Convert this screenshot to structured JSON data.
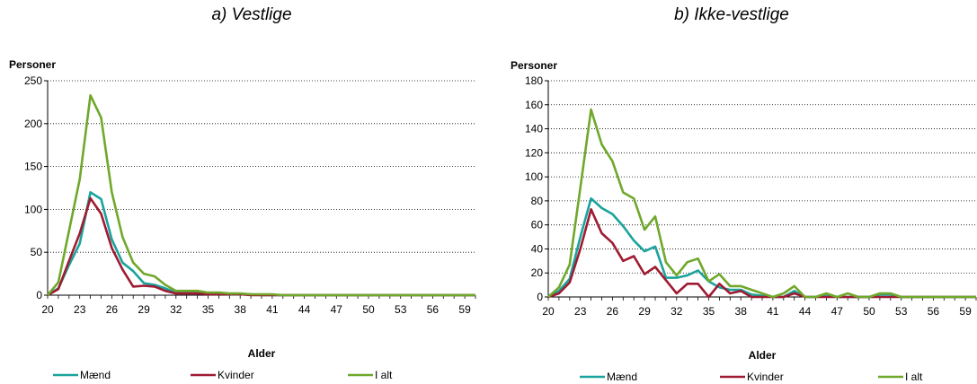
{
  "chart_data": [
    {
      "type": "line",
      "title": "a) Vestlige",
      "ylabel": "Personer",
      "xlabel": "Alder",
      "ylim": [
        0,
        250
      ],
      "yticks": [
        0,
        50,
        100,
        150,
        200,
        250
      ],
      "xlim": [
        20,
        60
      ],
      "xticks": [
        20,
        23,
        26,
        29,
        32,
        35,
        38,
        41,
        44,
        47,
        50,
        53,
        56,
        59
      ],
      "grid": "horizontal dotted",
      "legend_position": "bottom",
      "x": [
        20,
        21,
        22,
        23,
        24,
        25,
        26,
        27,
        28,
        29,
        30,
        31,
        32,
        33,
        34,
        35,
        36,
        37,
        38,
        39,
        40,
        41,
        42,
        43,
        44,
        45,
        46,
        47,
        48,
        49,
        50,
        51,
        52,
        53,
        54,
        55,
        56,
        57,
        58,
        59,
        60
      ],
      "series": [
        {
          "name": "Mænd",
          "color": "#1aa39c",
          "values": [
            0,
            8,
            35,
            60,
            120,
            112,
            65,
            38,
            28,
            14,
            12,
            8,
            3,
            3,
            3,
            2,
            2,
            1,
            1,
            1,
            0,
            0,
            0,
            0,
            0,
            0,
            0,
            0,
            0,
            0,
            0,
            0,
            0,
            0,
            0,
            0,
            0,
            0,
            0,
            0,
            0
          ]
        },
        {
          "name": "Kvinder",
          "color": "#9e1b32",
          "values": [
            0,
            7,
            40,
            72,
            113,
            95,
            55,
            30,
            10,
            11,
            10,
            5,
            2,
            2,
            2,
            1,
            1,
            1,
            1,
            0,
            0,
            0,
            0,
            0,
            0,
            0,
            0,
            0,
            0,
            0,
            0,
            0,
            0,
            0,
            0,
            0,
            0,
            0,
            0,
            0,
            0
          ]
        },
        {
          "name": "I alt",
          "color": "#6fa82b",
          "values": [
            0,
            15,
            75,
            135,
            233,
            207,
            120,
            68,
            38,
            25,
            22,
            12,
            5,
            5,
            5,
            3,
            3,
            2,
            2,
            1,
            1,
            1,
            0,
            0,
            0,
            0,
            0,
            0,
            0,
            0,
            0,
            0,
            0,
            0,
            0,
            0,
            0,
            0,
            0,
            0,
            0
          ]
        }
      ]
    },
    {
      "type": "line",
      "title": "b) Ikke-vestlige",
      "ylabel": "Personer",
      "xlabel": "Alder",
      "ylim": [
        0,
        180
      ],
      "yticks": [
        0,
        20,
        40,
        60,
        80,
        100,
        120,
        140,
        160,
        180
      ],
      "xlim": [
        20,
        60
      ],
      "xticks": [
        20,
        23,
        26,
        29,
        32,
        35,
        38,
        41,
        44,
        47,
        50,
        53,
        56,
        59
      ],
      "grid": "horizontal dotted",
      "legend_position": "bottom",
      "x": [
        20,
        21,
        22,
        23,
        24,
        25,
        26,
        27,
        28,
        29,
        30,
        31,
        32,
        33,
        34,
        35,
        36,
        37,
        38,
        39,
        40,
        41,
        42,
        43,
        44,
        45,
        46,
        47,
        48,
        49,
        50,
        51,
        52,
        53,
        54,
        55,
        56,
        57,
        58,
        59,
        60
      ],
      "series": [
        {
          "name": "Mænd",
          "color": "#1aa39c",
          "values": [
            0,
            5,
            15,
            50,
            82,
            74,
            69,
            59,
            47,
            38,
            42,
            16,
            16,
            18,
            22,
            13,
            8,
            6,
            6,
            2,
            1,
            0,
            0,
            5,
            0,
            0,
            2,
            0,
            0,
            0,
            0,
            2,
            2,
            0,
            0,
            0,
            0,
            0,
            0,
            0,
            0
          ]
        },
        {
          "name": "Kvinder",
          "color": "#9e1b32",
          "values": [
            0,
            3,
            12,
            40,
            73,
            53,
            45,
            30,
            34,
            19,
            25,
            14,
            3,
            11,
            11,
            0,
            11,
            3,
            5,
            0,
            0,
            0,
            0,
            3,
            0,
            0,
            0,
            0,
            0,
            0,
            0,
            0,
            0,
            0,
            0,
            0,
            0,
            0,
            0,
            0,
            0
          ]
        },
        {
          "name": "I alt",
          "color": "#6fa82b",
          "values": [
            0,
            8,
            27,
            91,
            156,
            127,
            113,
            87,
            82,
            56,
            67,
            29,
            18,
            29,
            32,
            13,
            19,
            9,
            9,
            6,
            3,
            0,
            3,
            9,
            0,
            0,
            3,
            0,
            3,
            0,
            0,
            3,
            3,
            0,
            0,
            0,
            0,
            0,
            0,
            0,
            0
          ]
        }
      ]
    }
  ]
}
